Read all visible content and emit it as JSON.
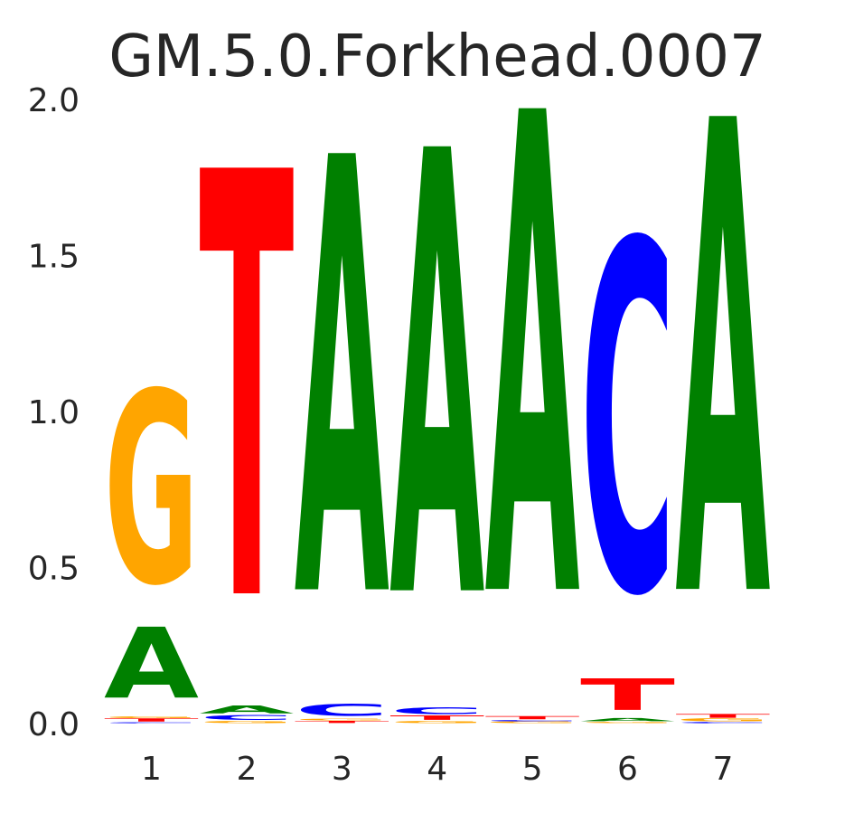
{
  "chart_data": {
    "type": "sequence-logo",
    "title": "GM.5.0.Forkhead.0007",
    "xlabel": "",
    "ylabel": "",
    "ylim": [
      0,
      2.0
    ],
    "y_ticks": [
      "0.0",
      "0.5",
      "1.0",
      "1.5",
      "2.0"
    ],
    "positions": [
      "1",
      "2",
      "3",
      "4",
      "5",
      "6",
      "7"
    ],
    "colors": {
      "A": "#008000",
      "C": "#0000ff",
      "G": "#ffa500",
      "T": "#ff0000"
    },
    "stacks": [
      [
        {
          "letter": "C",
          "bits": 0.004
        },
        {
          "letter": "T",
          "bits": 0.012
        },
        {
          "letter": "G",
          "bits": 0.007
        },
        {
          "letter": "A",
          "bits": 0.27
        },
        {
          "letter": "G",
          "bits": 0.73
        }
      ],
      [
        {
          "letter": "G",
          "bits": 0.008
        },
        {
          "letter": "C",
          "bits": 0.018
        },
        {
          "letter": "A",
          "bits": 0.03
        },
        {
          "letter": "T",
          "bits": 1.62
        }
      ],
      [
        {
          "letter": "T",
          "bits": 0.008
        },
        {
          "letter": "G",
          "bits": 0.007
        },
        {
          "letter": "C",
          "bits": 0.045
        },
        {
          "letter": "A",
          "bits": 1.66
        }
      ],
      [
        {
          "letter": "G",
          "bits": 0.008
        },
        {
          "letter": "T",
          "bits": 0.017
        },
        {
          "letter": "C",
          "bits": 0.025
        },
        {
          "letter": "A",
          "bits": 1.69
        }
      ],
      [
        {
          "letter": "G",
          "bits": 0.006
        },
        {
          "letter": "C",
          "bits": 0.005
        },
        {
          "letter": "T",
          "bits": 0.012
        },
        {
          "letter": "A",
          "bits": 1.83
        }
      ],
      [
        {
          "letter": "G",
          "bits": 0.005
        },
        {
          "letter": "A",
          "bits": 0.012
        },
        {
          "letter": "T",
          "bits": 0.12
        },
        {
          "letter": "C",
          "bits": 1.33
        }
      ],
      [
        {
          "letter": "C",
          "bits": 0.005
        },
        {
          "letter": "G",
          "bits": 0.01
        },
        {
          "letter": "T",
          "bits": 0.015
        },
        {
          "letter": "A",
          "bits": 1.8
        }
      ]
    ]
  }
}
